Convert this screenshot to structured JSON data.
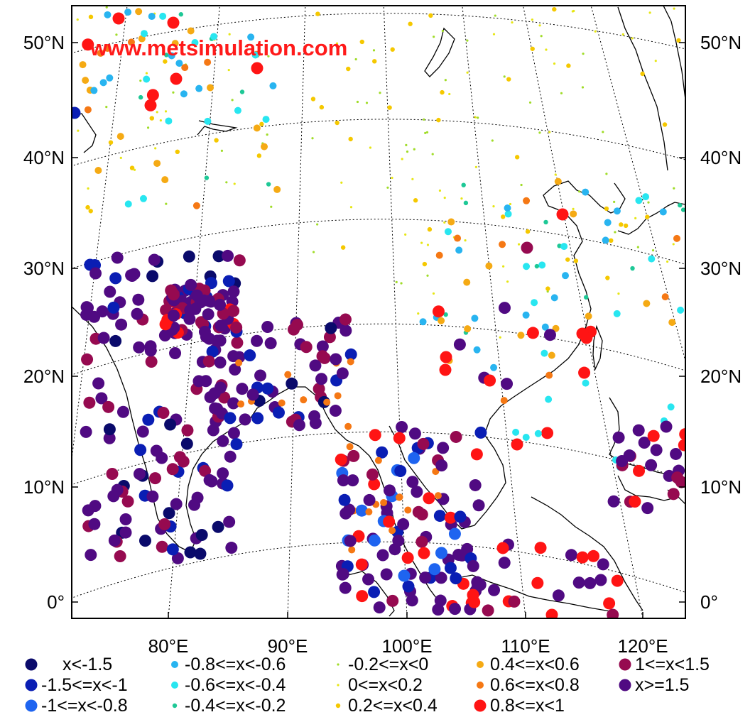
{
  "watermark": "www.metsimulation.com",
  "latitude_labels": [
    "50°N",
    "40°N",
    "30°N",
    "20°N",
    "10°N",
    "0°"
  ],
  "longitude_labels": [
    "80°E",
    "90°E",
    "100°E",
    "110°E",
    "120°E"
  ],
  "legend": [
    {
      "label": "x<-1.5",
      "color": "#0a0a6b",
      "size": "large"
    },
    {
      "label": "-1.5<=x<-1",
      "color": "#0a1eb4",
      "size": "large"
    },
    {
      "label": "-1<=x<-0.8",
      "color": "#1e64f0",
      "size": "large"
    },
    {
      "label": "-0.8<=x<-0.6",
      "color": "#28b4f0",
      "size": "medium"
    },
    {
      "label": "-0.6<=x<-0.4",
      "color": "#28e6f0",
      "size": "medium"
    },
    {
      "label": "-0.4<=x<-0.2",
      "color": "#1ec896",
      "size": "small"
    },
    {
      "label": "-0.2<=x<0",
      "color": "#a0dc28",
      "size": "tiny"
    },
    {
      "label": "0<=x<0.2",
      "color": "#e6e614",
      "size": "tiny"
    },
    {
      "label": "0.2<=x<0.4",
      "color": "#f5c800",
      "size": "small"
    },
    {
      "label": "0.4<=x<0.6",
      "color": "#f5aa14",
      "size": "medium"
    },
    {
      "label": "0.6<=x<0.8",
      "color": "#f57814",
      "size": "medium"
    },
    {
      "label": "0.8<=x<1",
      "color": "#ff1414",
      "size": "large"
    },
    {
      "label": "1<=x<1.5",
      "color": "#960a50",
      "size": "large"
    },
    {
      "label": "x>=1.5",
      "color": "#500a82",
      "size": "large"
    }
  ]
}
